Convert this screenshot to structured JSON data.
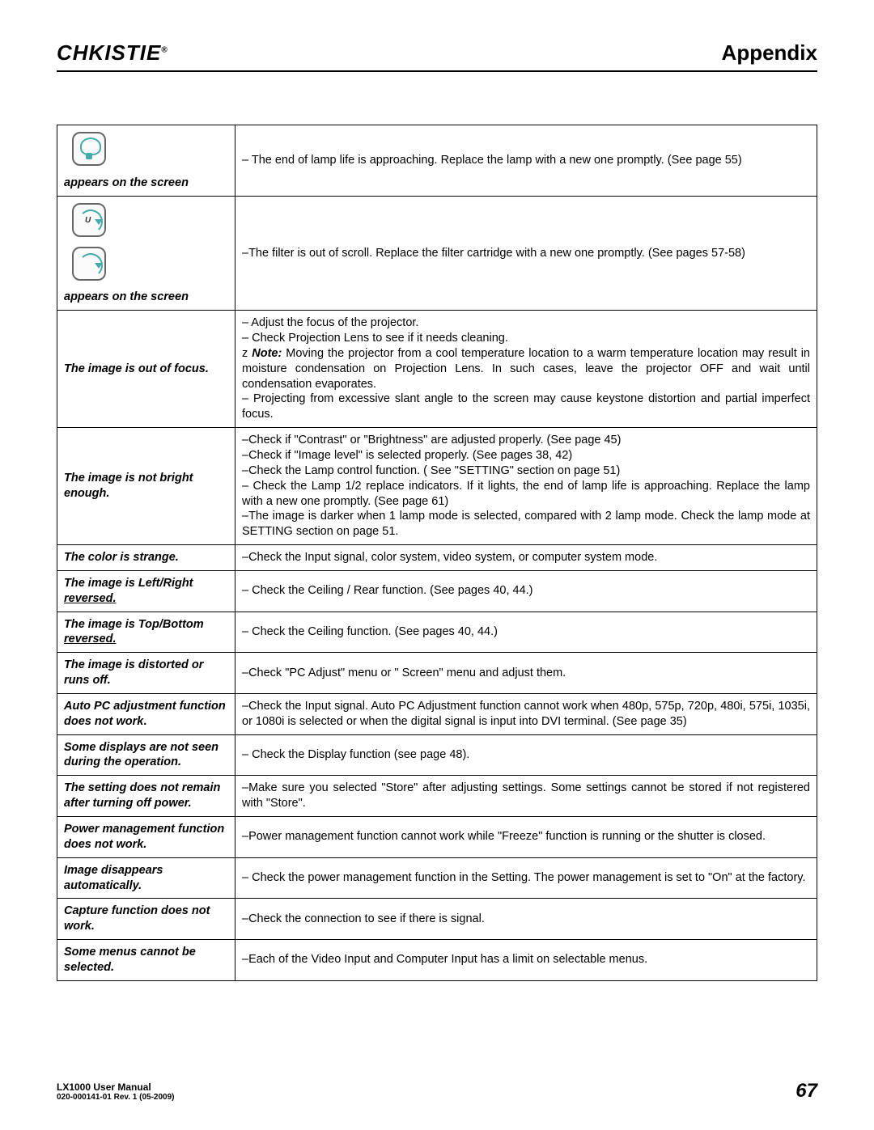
{
  "header": {
    "logo": "CHKISTIE",
    "logo_rmark": "®",
    "section": "Appendix"
  },
  "rows": [
    {
      "symptom_kind": "icon-lamp",
      "symptom_text": "appears on the screen",
      "solution_html": "– The end of lamp life is approaching. Replace the lamp with a new one promptly. (See page 55)"
    },
    {
      "symptom_kind": "icon-filter",
      "symptom_text": "appears on the screen",
      "solution_html": "–The filter is out of scroll. Replace the filter cartridge with a new one promptly. (See pages 57-58)",
      "justify": true
    },
    {
      "symptom_text": "The image is out of focus.",
      "solution_lines": [
        "– Adjust the focus of the projector.",
        "– Check Projection Lens to see if it needs cleaning.",
        "NOTE::Moving the projector from a cool temperature location to a warm temperature location may result in moisture condensation on Projection Lens.  In such cases, leave the projector OFF and wait until condensation evaporates.",
        "–  Projecting from excessive slant angle to the screen may cause keystone distortion and partial imperfect focus."
      ],
      "justify": true
    },
    {
      "symptom_text": "The image is not bright enough.",
      "solution_lines": [
        "–Check if \"Contrast\" or \"Brightness\" are adjusted properly. (See page 45)",
        "–Check if \"Image level\" is selected properly. (See pages 38, 42)",
        "–Check  the Lamp control function. ( See \"SETTING\" section on page 51)",
        "– Check the Lamp 1/2 replace indicators. If it lights, the end of lamp life is approaching. Replace the lamp with a new one promptly.  (See page 61)",
        "–The image is darker when 1 lamp mode is selected, compared with 2 lamp mode. Check the lamp mode at SETTING section on page 51."
      ],
      "justify": true
    },
    {
      "symptom_text": "The color is strange.",
      "solution_html": "–Check the Input signal, color system, video system, or computer system mode."
    },
    {
      "symptom_html": "The image is Left/Right <u>reversed.</u>",
      "solution_html": "– Check the Ceiling / Rear function.  (See pages 40, 44.)"
    },
    {
      "symptom_html": "The image is Top/Bottom <u>reversed.</u>",
      "solution_html": "– Check the Ceiling function.  (See pages 40, 44.)"
    },
    {
      "symptom_text": "The image is distorted or runs off.",
      "solution_html": "–Check \"PC Adjust\" menu or \" Screen\" menu and adjust them."
    },
    {
      "symptom_html": "Auto PC adjustment function does not work<span style='font-style:normal'>.</span>",
      "solution_html": "–Check the Input signal.  Auto PC Adjustment function cannot work when 480p, 575p, 720p, 480i, 575i, 1035i, or 1080i is selected or when the digital signal is input into DVI terminal. (See page 35)",
      "justify": true
    },
    {
      "symptom_text": "Some displays are not seen during the operation.",
      "solution_html": "–  Check the Display function (see page 48)."
    },
    {
      "symptom_text": "The setting does not remain after turning off power.",
      "solution_html": "–Make sure you selected \"Store\" after adjusting settings. Some settings cannot be stored if not registered with \"Store\".",
      "justify": true
    },
    {
      "symptom_text": "Power management function does not work.",
      "solution_html": "–Power management function cannot work while \"Freeze\" function is running or the shutter is closed.",
      "justify": true
    },
    {
      "symptom_text": "Image disappears automatically.",
      "solution_html": "– Check the power management function in the Setting. The power management is set to \"On\" at the factory.",
      "justify": true
    },
    {
      "symptom_text": "Capture function does not work.",
      "solution_html": "–Check the connection to see if there is signal."
    },
    {
      "symptom_text": "Some menus cannot be selected.",
      "solution_html": "–Each of the Video Input and Computer Input has a limit on selectable menus."
    }
  ],
  "footer": {
    "product": "LX1000 User Manual",
    "rev": "020-000141-01  Rev. 1  (05-2009)",
    "page": "67"
  }
}
